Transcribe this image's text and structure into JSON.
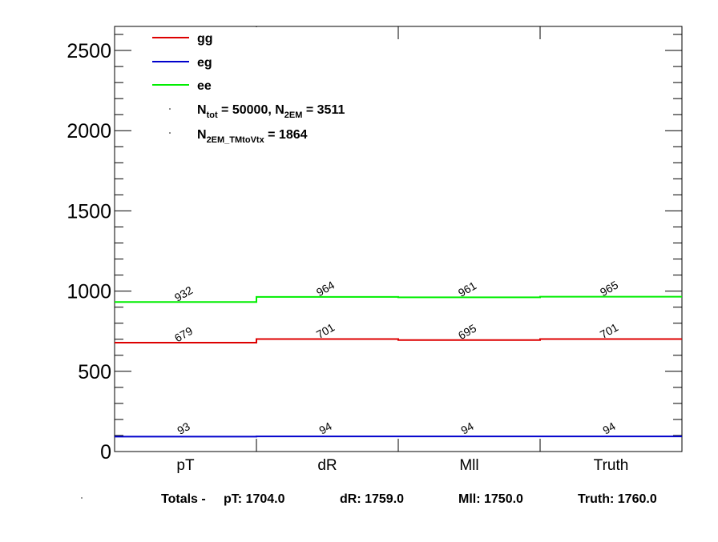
{
  "chart_data": {
    "type": "line",
    "style": "step-histogram",
    "categories": [
      "pT",
      "dR",
      "Mll",
      "Truth"
    ],
    "ylim": [
      0,
      2650
    ],
    "yticks": [
      0,
      500,
      1000,
      1500,
      2000,
      2500
    ],
    "series": [
      {
        "name": "gg",
        "color": "#dd0000",
        "values": [
          679,
          701,
          695,
          701
        ]
      },
      {
        "name": "eg",
        "color": "#0000cc",
        "values": [
          93,
          94,
          94,
          94
        ]
      },
      {
        "name": "ee",
        "color": "#00ee00",
        "values": [
          932,
          964,
          961,
          965
        ]
      }
    ],
    "legend_position": "top-left",
    "legend_notes": [
      "N_tot = 50000, N_2EM = 3511",
      "N_2EM_TMtoVtx = 1864"
    ],
    "totals": {
      "prefix": "Totals -",
      "items": [
        {
          "label": "pT:",
          "value": "1704.0"
        },
        {
          "label": "dR:",
          "value": "1759.0"
        },
        {
          "label": "Mll:",
          "value": "1750.0"
        },
        {
          "label": "Truth:",
          "value": "1760.0"
        }
      ]
    }
  }
}
